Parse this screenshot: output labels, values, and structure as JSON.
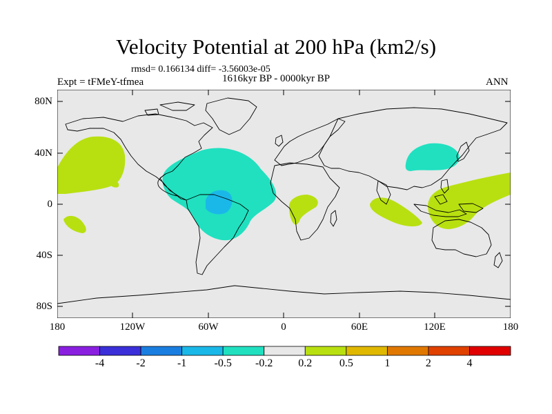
{
  "title": "Velocity Potential at 200 hPa (km2/s)",
  "stats": "rmsd= 0.166134 diff= -3.56003e-05",
  "period": "1616kyr BP - 0000kyr BP",
  "experiment": "Expt = tFMeY-tfmea",
  "season": "ANN",
  "axes": {
    "lat_labels": [
      "80N",
      "40N",
      "0",
      "40S",
      "80S"
    ],
    "lon_labels": [
      "180",
      "120W",
      "60W",
      "0",
      "60E",
      "120E",
      "180"
    ]
  },
  "colorbar": {
    "labels": [
      "-4",
      "-2",
      "-1",
      "-0.5",
      "-0.2",
      "0.2",
      "0.5",
      "1",
      "2",
      "4"
    ],
    "colors": [
      "#8a1fe0",
      "#3a2fd8",
      "#1a7ee0",
      "#1ab8e8",
      "#20e0c0",
      "#e8e8e8",
      "#b8e010",
      "#e0b800",
      "#e07800",
      "#e04000",
      "#e00000"
    ]
  },
  "colors": {
    "ocean_bg": "#e8e8e8",
    "positive_weak": "#b8e010",
    "negative_weak": "#20e0c0",
    "negative_mid": "#1ab8e8",
    "coast": "#000000"
  },
  "anomaly_regions": [
    {
      "name": "north-pacific-positive",
      "level": "0.2"
    },
    {
      "name": "south-pacific-positive",
      "level": "0.2"
    },
    {
      "name": "atlantic-negative",
      "level": "-0.2"
    },
    {
      "name": "amazon-negative-core",
      "level": "-0.5"
    },
    {
      "name": "africa-positive",
      "level": "0.2"
    },
    {
      "name": "east-asia-negative",
      "level": "-0.2"
    },
    {
      "name": "indian-ocean-positive",
      "level": "0.2"
    },
    {
      "name": "maritime-continent-positive",
      "level": "0.2"
    }
  ]
}
